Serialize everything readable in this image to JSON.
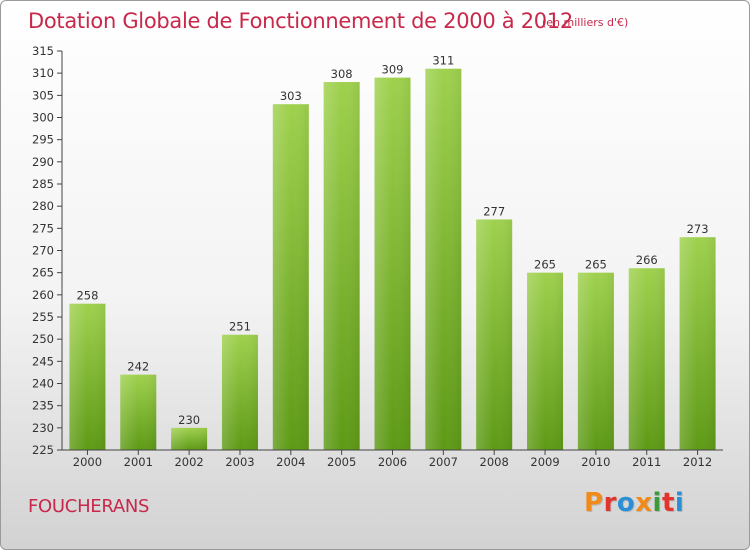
{
  "header": {
    "title": "Dotation Globale de Fonctionnement de 2000 à 2012",
    "unit": "(en milliers d'€)"
  },
  "footer": {
    "place": "FOUCHERANS",
    "logo": "Proxiti"
  },
  "colors": {
    "title": "#c8284a",
    "bar_top": "#9fd14e",
    "bar_bottom": "#5e9a16",
    "logo_letters": [
      "#f08a1a",
      "#e2342a",
      "#2c8fd6",
      "#f08a1a",
      "#3c9a3a",
      "#e2342a",
      "#2c8fd6"
    ]
  },
  "chart_data": {
    "type": "bar",
    "categories": [
      "2000",
      "2001",
      "2002",
      "2003",
      "2004",
      "2005",
      "2006",
      "2007",
      "2008",
      "2009",
      "2010",
      "2011",
      "2012"
    ],
    "values": [
      258,
      242,
      230,
      251,
      303,
      308,
      309,
      311,
      277,
      265,
      265,
      266,
      273
    ],
    "ylim": [
      225,
      315
    ],
    "yticks": [
      225,
      230,
      235,
      240,
      245,
      250,
      255,
      260,
      265,
      270,
      275,
      280,
      285,
      290,
      295,
      300,
      305,
      310,
      315
    ],
    "grid": false,
    "xlabel": "",
    "ylabel": ""
  }
}
